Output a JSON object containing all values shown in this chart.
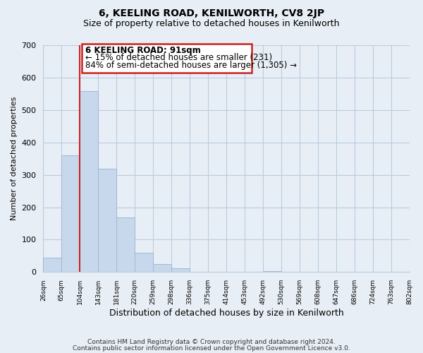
{
  "title": "6, KEELING ROAD, KENILWORTH, CV8 2JP",
  "subtitle": "Size of property relative to detached houses in Kenilworth",
  "xlabel": "Distribution of detached houses by size in Kenilworth",
  "ylabel": "Number of detached properties",
  "bar_color": "#c8d8ec",
  "bar_edge_color": "#a0b8d8",
  "bins": [
    "26sqm",
    "65sqm",
    "104sqm",
    "143sqm",
    "181sqm",
    "220sqm",
    "259sqm",
    "298sqm",
    "336sqm",
    "375sqm",
    "414sqm",
    "453sqm",
    "492sqm",
    "530sqm",
    "569sqm",
    "608sqm",
    "647sqm",
    "686sqm",
    "724sqm",
    "763sqm",
    "802sqm"
  ],
  "values": [
    45,
    360,
    558,
    318,
    168,
    60,
    25,
    12,
    0,
    0,
    0,
    0,
    3,
    0,
    0,
    0,
    0,
    0,
    0,
    0,
    3
  ],
  "ylim": [
    0,
    700
  ],
  "yticks": [
    0,
    100,
    200,
    300,
    400,
    500,
    600,
    700
  ],
  "property_line_bin_index": 2,
  "annotation_title": "6 KEELING ROAD: 91sqm",
  "annotation_line1": "← 15% of detached houses are smaller (231)",
  "annotation_line2": "84% of semi-detached houses are larger (1,305) →",
  "annotation_box_color": "#ffffff",
  "annotation_box_edge_color": "#cc2222",
  "red_line_color": "#cc2222",
  "footer1": "Contains HM Land Registry data © Crown copyright and database right 2024.",
  "footer2": "Contains public sector information licensed under the Open Government Licence v3.0.",
  "background_color": "#e8eef5",
  "plot_background": "#e8eef5",
  "grid_color": "#b8cce0"
}
